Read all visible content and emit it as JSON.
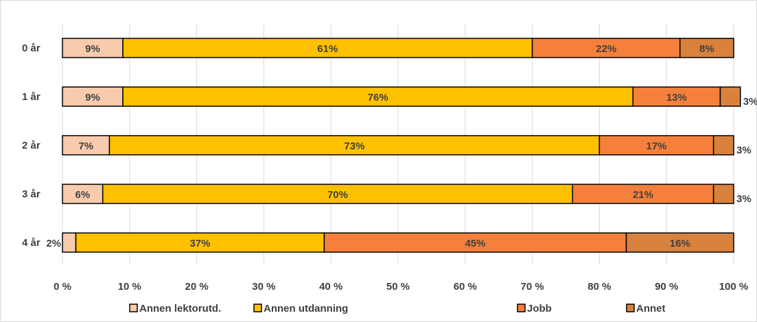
{
  "chart_data": {
    "type": "bar",
    "orientation": "horizontal",
    "stacked": true,
    "percent_stacked": true,
    "categories": [
      "0 år",
      "1 år",
      "2 år",
      "3 år",
      "4 år"
    ],
    "series": [
      {
        "name": "Annen lektorutd.",
        "color": "#f8cbad",
        "values": [
          9,
          9,
          7,
          6,
          2
        ],
        "labels": [
          "9%",
          "9%",
          "7%",
          "6%",
          "2%"
        ]
      },
      {
        "name": "Annen utdanning",
        "color": "#ffc000",
        "values": [
          61,
          76,
          73,
          70,
          37
        ],
        "labels": [
          "61%",
          "76%",
          "73%",
          "70%",
          "37%"
        ]
      },
      {
        "name": "Jobb",
        "color": "#f4803b",
        "values": [
          22,
          13,
          17,
          21,
          45
        ],
        "labels": [
          "22%",
          "13%",
          "17%",
          "21%",
          "45%"
        ]
      },
      {
        "name": "Annet",
        "color": "#d8823e",
        "values": [
          8,
          3,
          3,
          3,
          16
        ],
        "labels": [
          "8%",
          "3%",
          "3%",
          "3%",
          "16%"
        ]
      }
    ],
    "x_ticks": [
      "0 %",
      "10 %",
      "20 %",
      "30 %",
      "40 %",
      "50 %",
      "60 %",
      "70 %",
      "80 %",
      "90 %",
      "100 %"
    ],
    "xlim": [
      0,
      100
    ],
    "grid": true,
    "legend_position": "bottom",
    "title": "",
    "xlabel": "",
    "ylabel": ""
  }
}
